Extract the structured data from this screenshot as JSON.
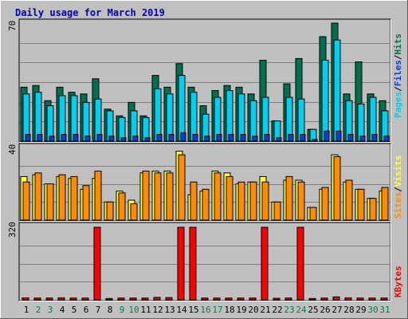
{
  "title": "Daily usage for March 2019",
  "colors": {
    "background": "#c0c0c0",
    "title": "#0000c0",
    "hits": "#007050",
    "files": "#00d0f0",
    "pages": "#0040e0",
    "visits": "#ffff40",
    "sites": "#ff8c00",
    "kbytes": "#ff0000",
    "weekend_label": "#008040",
    "weekday_label": "#000000"
  },
  "chart_data": [
    {
      "type": "bar",
      "name": "hits-files-pages",
      "ylabel_parts": [
        "Pages",
        "/",
        "Files",
        "/",
        "Hits"
      ],
      "ymax_label": "70",
      "ylim": [
        0,
        70
      ],
      "categories": [
        "1",
        "2",
        "3",
        "4",
        "5",
        "6",
        "7",
        "8",
        "9",
        "10",
        "11",
        "12",
        "13",
        "14",
        "15",
        "16",
        "17",
        "18",
        "19",
        "20",
        "21",
        "22",
        "23",
        "24",
        "25",
        "26",
        "27",
        "28",
        "29",
        "30",
        "31"
      ],
      "series": [
        {
          "name": "Hits",
          "values": [
            32,
            33,
            24,
            32,
            29,
            28,
            37,
            19,
            15,
            23,
            15,
            39,
            32,
            46,
            32,
            21,
            30,
            33,
            32,
            28,
            48,
            12,
            34,
            49,
            7,
            62,
            70,
            28,
            47,
            28,
            24
          ]
        },
        {
          "name": "Files",
          "values": [
            28,
            29,
            21,
            27,
            27,
            23,
            25,
            18,
            14,
            18,
            14,
            31,
            28,
            39,
            29,
            16,
            26,
            30,
            28,
            24,
            26,
            12,
            26,
            25,
            7,
            48,
            60,
            24,
            22,
            26,
            18
          ]
        },
        {
          "name": "Pages",
          "values": [
            4,
            4,
            3,
            4,
            4,
            3,
            4,
            3,
            2,
            3,
            2,
            4,
            4,
            5,
            4,
            3,
            4,
            4,
            4,
            3,
            4,
            2,
            4,
            4,
            1,
            6,
            6,
            4,
            3,
            4,
            3
          ]
        }
      ]
    },
    {
      "type": "bar",
      "name": "visits-sites",
      "ylabel_parts": [
        "Sites",
        "/",
        "Visits"
      ],
      "ymax_label": "40",
      "ylim": [
        0,
        40
      ],
      "categories": [
        "1",
        "2",
        "3",
        "4",
        "5",
        "6",
        "7",
        "8",
        "9",
        "10",
        "11",
        "12",
        "13",
        "14",
        "15",
        "16",
        "17",
        "18",
        "19",
        "20",
        "21",
        "22",
        "23",
        "24",
        "25",
        "26",
        "27",
        "28",
        "29",
        "30",
        "31"
      ],
      "series": [
        {
          "name": "Visits",
          "values": [
            24,
            25,
            20,
            24,
            23,
            17,
            23,
            10,
            16,
            11,
            26,
            27,
            27,
            38,
            14,
            16,
            27,
            26,
            20,
            21,
            24,
            10,
            22,
            22,
            7,
            17,
            36,
            21,
            17,
            12,
            16
          ]
        },
        {
          "name": "Sites",
          "values": [
            21,
            26,
            20,
            25,
            24,
            19,
            27,
            10,
            15,
            9,
            27,
            26,
            26,
            36,
            21,
            17,
            26,
            24,
            21,
            21,
            21,
            10,
            24,
            21,
            7,
            18,
            35,
            22,
            17,
            12,
            18
          ]
        }
      ]
    },
    {
      "type": "bar",
      "name": "kbytes",
      "ylabel_parts": [
        "KBytes"
      ],
      "ymax_label": "320",
      "ylim": [
        0,
        320
      ],
      "categories": [
        "1",
        "2",
        "3",
        "4",
        "5",
        "6",
        "7",
        "8",
        "9",
        "10",
        "11",
        "12",
        "13",
        "14",
        "15",
        "16",
        "17",
        "18",
        "19",
        "20",
        "21",
        "22",
        "23",
        "24",
        "25",
        "26",
        "27",
        "28",
        "29",
        "30",
        "31"
      ],
      "series": [
        {
          "name": "KBytes",
          "values": [
            9,
            8,
            8,
            9,
            8,
            8,
            320,
            6,
            8,
            8,
            8,
            11,
            10,
            320,
            320,
            8,
            8,
            8,
            8,
            8,
            320,
            7,
            8,
            320,
            6,
            8,
            13,
            9,
            8,
            8,
            8
          ]
        }
      ]
    }
  ],
  "weekend_days": [
    "2",
    "3",
    "9",
    "10",
    "16",
    "17",
    "23",
    "24",
    "30",
    "31"
  ]
}
